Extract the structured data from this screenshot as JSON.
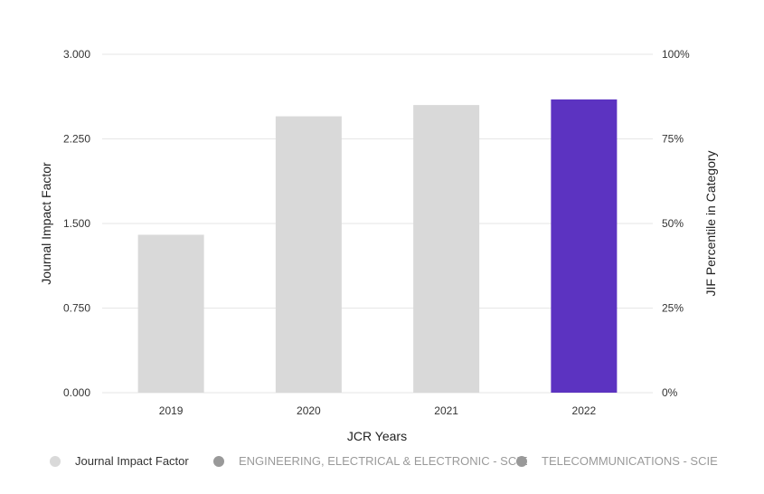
{
  "chart_data": {
    "type": "bar",
    "categories": [
      "2019",
      "2020",
      "2021",
      "2022"
    ],
    "values": [
      1.4,
      2.45,
      2.55,
      2.6
    ],
    "highlight_index": 3,
    "xlabel": "JCR Years",
    "ylabel": "Journal Impact Factor",
    "ylabel_right": "JIF Percentile in Category",
    "ylim": [
      0,
      3.0
    ],
    "y_ticks": [
      "0.000",
      "0.750",
      "1.500",
      "2.250",
      "3.000"
    ],
    "y2_ticks": [
      "0%",
      "25%",
      "50%",
      "75%",
      "100%"
    ],
    "grid": true,
    "colors": {
      "bar": "#d9d9d9",
      "highlight": "#5c33c1",
      "grid": "#e6e6e6"
    },
    "legend": [
      {
        "name": "Journal Impact Factor",
        "color": "#d9d9d9",
        "active": true
      },
      {
        "name": "ENGINEERING, ELECTRICAL & ELECTRONIC - SCIE",
        "color": "#999999",
        "active": false
      },
      {
        "name": "TELECOMMUNICATIONS - SCIE",
        "color": "#999999",
        "active": false
      }
    ]
  }
}
